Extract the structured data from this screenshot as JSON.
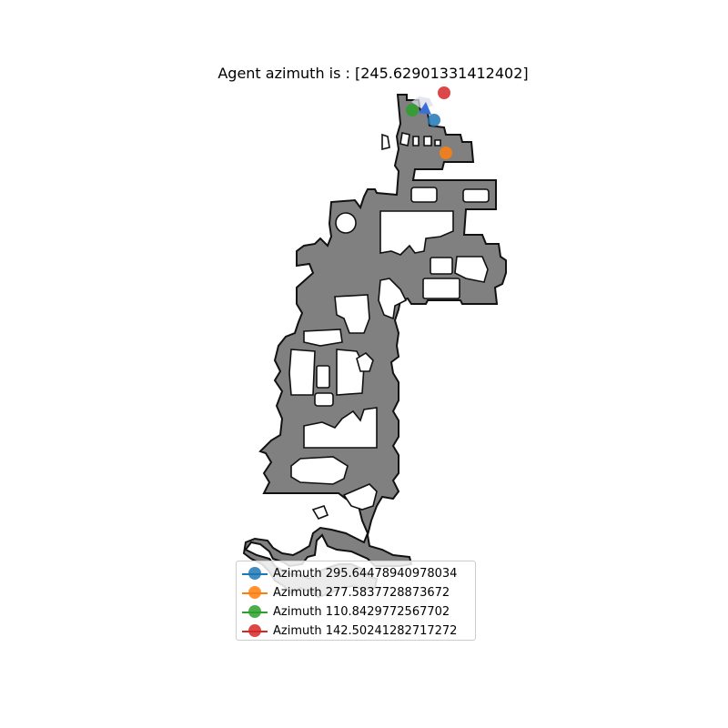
{
  "figure": {
    "title": "Agent azimuth is : [245.62901331412402]"
  },
  "legend": {
    "items": [
      {
        "label": "Azimuth 295.64478940978034",
        "color": "#1f77b4"
      },
      {
        "label": "Azimuth 277.5837728873672",
        "color": "#ff7f0e"
      },
      {
        "label": "Azimuth 110.8429772567702",
        "color": "#2ca02c"
      },
      {
        "label": "Azimuth 142.50241282717272",
        "color": "#d62728"
      }
    ]
  },
  "map": {
    "floor_color": "#808080",
    "wall_color": "#111111",
    "agent_marker_color": "#3a6fd8",
    "agent_marker": "triangle"
  }
}
